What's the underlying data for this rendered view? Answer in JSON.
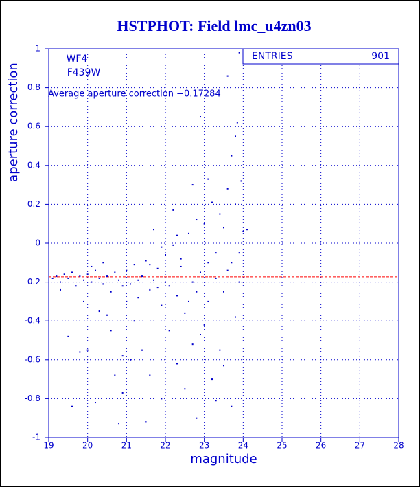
{
  "chart_data": {
    "type": "scatter",
    "title": "HSTPHOT: Field lmc_u4zn03",
    "x_label": "magnitude",
    "y_label": "aperture correction",
    "annotations": [
      "WF4",
      "F439W",
      "Average aperture correction −0.17284"
    ],
    "stats": {
      "label": "ENTRIES",
      "value": 901
    },
    "reference_line": -0.17284,
    "reference_color": "#ff0000",
    "color": "#0000cc",
    "grid": true,
    "xlim": [
      19,
      28
    ],
    "xticks": [
      19,
      20,
      21,
      22,
      23,
      24,
      25,
      26,
      27,
      28
    ],
    "ylim": [
      -1,
      1
    ],
    "yticks": [
      -1,
      -0.8,
      -0.6,
      -0.4,
      -0.2,
      0,
      0.2,
      0.4,
      0.6,
      0.8,
      1
    ],
    "x": [
      19.1,
      19.2,
      19.3,
      19.4,
      19.5,
      19.6,
      19.7,
      19.8,
      19.9,
      20.0,
      20.1,
      20.2,
      20.3,
      20.4,
      20.5,
      20.6,
      20.7,
      20.8,
      19.5,
      19.6,
      19.8,
      19.9,
      20.0,
      20.2,
      20.3,
      20.5,
      20.6,
      20.7,
      20.8,
      20.9,
      21.0,
      21.1,
      21.2,
      21.3,
      21.4,
      21.5,
      21.6,
      21.7,
      21.8,
      21.9,
      22.0,
      22.1,
      22.2,
      22.3,
      22.4,
      22.5,
      22.6,
      22.7,
      22.8,
      22.9,
      23.0,
      23.1,
      23.2,
      23.3,
      23.4,
      23.5,
      23.6,
      23.7,
      23.8,
      23.9,
      23.85,
      23.6,
      22.9,
      22.2,
      21.7,
      21.2,
      21.4,
      21.5,
      21.6,
      21.9,
      22.1,
      22.3,
      22.5,
      22.7,
      22.8,
      23.0,
      23.2,
      23.3,
      23.4,
      23.5,
      23.7,
      23.8,
      23.9,
      24.0,
      24.1,
      23.95,
      22.4,
      22.6,
      23.1,
      23.3,
      23.7,
      23.9,
      20.9,
      21.3,
      21.8,
      22.0,
      22.8,
      23.6,
      19.3,
      20.1,
      20.4,
      21.0,
      21.1,
      20.9,
      22.9,
      23.1,
      23.5,
      23.8,
      22.7,
      22.3,
      21.9,
      21.6
    ],
    "values": [
      -0.18,
      -0.17,
      -0.2,
      -0.16,
      -0.18,
      -0.15,
      -0.22,
      -0.17,
      -0.19,
      -0.16,
      -0.2,
      -0.14,
      -0.18,
      -0.21,
      -0.17,
      -0.25,
      -0.15,
      -0.19,
      -0.48,
      -0.84,
      -0.56,
      -0.3,
      -0.55,
      -0.82,
      -0.35,
      -0.37,
      -0.45,
      -0.68,
      -0.93,
      -0.58,
      -0.14,
      -0.21,
      -0.11,
      -0.28,
      -0.17,
      -0.09,
      -0.24,
      -0.19,
      -0.13,
      -0.32,
      -0.06,
      -0.22,
      -0.01,
      -0.27,
      -0.12,
      -0.36,
      0.05,
      -0.2,
      0.12,
      -0.15,
      0.1,
      -0.3,
      0.21,
      -0.05,
      0.15,
      -0.25,
      0.28,
      0.45,
      0.55,
      0.98,
      0.62,
      0.86,
      0.65,
      0.17,
      0.07,
      -0.4,
      -0.55,
      -0.92,
      -0.68,
      -0.8,
      -0.45,
      -0.62,
      -0.75,
      -0.52,
      -0.9,
      -0.42,
      -0.7,
      -0.81,
      -0.55,
      -0.63,
      -0.84,
      -0.38,
      -0.2,
      0.06,
      0.07,
      0.32,
      -0.08,
      -0.3,
      -0.1,
      -0.18,
      -0.1,
      -0.05,
      -0.22,
      -0.19,
      -0.23,
      -0.2,
      -0.25,
      -0.14,
      -0.24,
      -0.12,
      -0.1,
      -0.3,
      -0.6,
      -0.77,
      -0.47,
      0.33,
      0.08,
      0.2,
      0.3,
      0.04,
      -0.02,
      -0.11
    ]
  }
}
